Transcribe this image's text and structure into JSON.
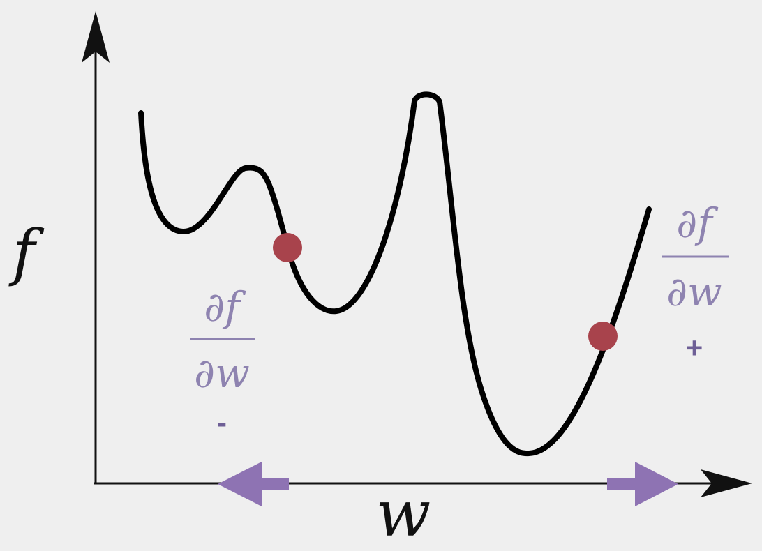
{
  "axes": {
    "x_label": "w",
    "y_label": "f"
  },
  "left_annotation": {
    "numerator": "∂f",
    "denominator": "∂w",
    "sign": "-",
    "arrow_direction": "left"
  },
  "right_annotation": {
    "numerator": "∂f",
    "denominator": "∂w",
    "sign": "+",
    "arrow_direction": "right"
  },
  "colors": {
    "background": "#efefef",
    "curve": "#000000",
    "axis": "#111111",
    "point": "#a8434c",
    "annotation_text": "#8e83b0",
    "annotation_sign": "#6e5f96",
    "arrow": "#8e73b3"
  }
}
